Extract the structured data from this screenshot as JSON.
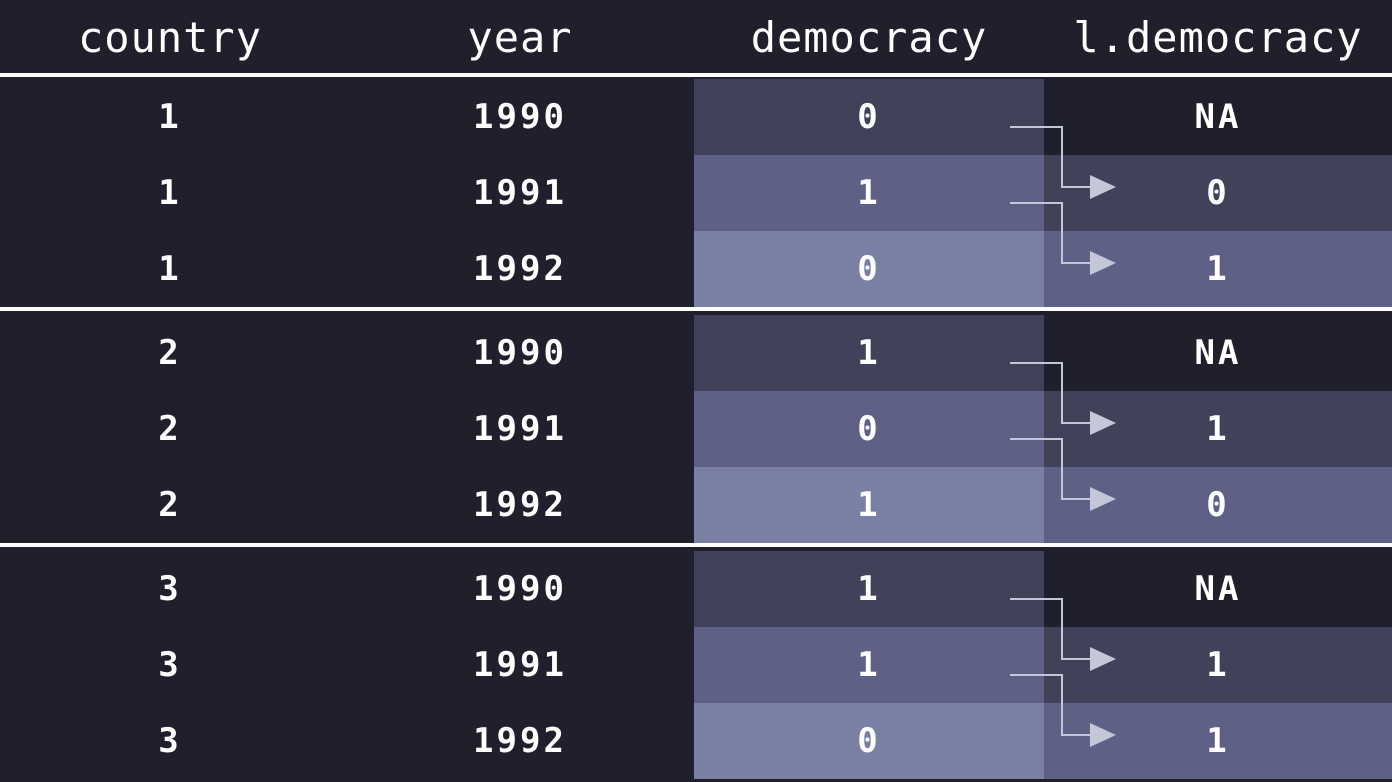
{
  "columns": [
    "country",
    "year",
    "democracy",
    "l.democracy"
  ],
  "groups": [
    {
      "rows": [
        {
          "country": "1",
          "year": "1990",
          "democracy": "0",
          "lag": "NA"
        },
        {
          "country": "1",
          "year": "1991",
          "democracy": "1",
          "lag": "0"
        },
        {
          "country": "1",
          "year": "1992",
          "democracy": "0",
          "lag": "1"
        }
      ]
    },
    {
      "rows": [
        {
          "country": "2",
          "year": "1990",
          "democracy": "1",
          "lag": "NA"
        },
        {
          "country": "2",
          "year": "1991",
          "democracy": "0",
          "lag": "1"
        },
        {
          "country": "2",
          "year": "1992",
          "democracy": "1",
          "lag": "0"
        }
      ]
    },
    {
      "rows": [
        {
          "country": "3",
          "year": "1990",
          "democracy": "1",
          "lag": "NA"
        },
        {
          "country": "3",
          "year": "1991",
          "democracy": "1",
          "lag": "1"
        },
        {
          "country": "3",
          "year": "1992",
          "democracy": "0",
          "lag": "1"
        }
      ]
    }
  ],
  "colors": {
    "background": "#1f202b",
    "shade_row_1": "#41425a",
    "shade_row_2": "#5e6085",
    "shade_row_3": "#7a7fa4",
    "arrow": "#c4c7d8",
    "rule": "#ffffff"
  }
}
